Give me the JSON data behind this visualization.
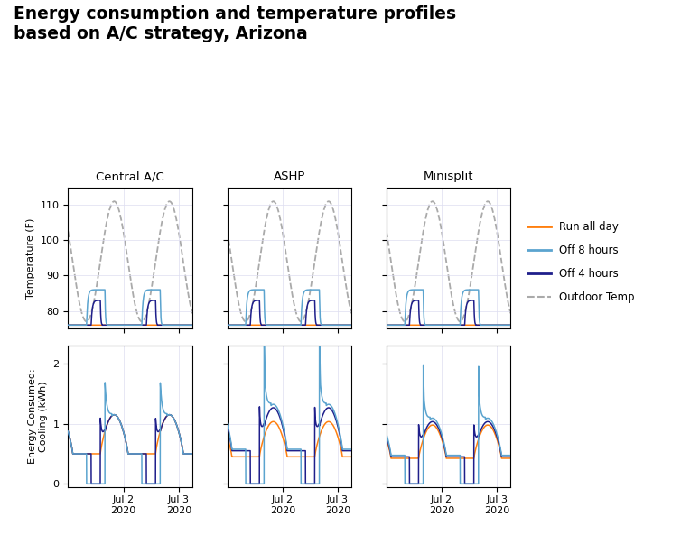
{
  "title": "Energy consumption and temperature profiles\nbased on A/C strategy, Arizona",
  "col_titles": [
    "Central A/C",
    "ASHP",
    "Minisplit"
  ],
  "legend_labels": [
    "Run all day",
    "Off 8 hours",
    "Off 4 hours",
    "Outdoor Temp"
  ],
  "color_run": "#FF7F0E",
  "color_off8": "#5BA4CF",
  "color_off4": "#1F1F8B",
  "color_outdoor": "#AAAAAA",
  "temp_ylim": [
    75,
    115
  ],
  "temp_yticks": [
    80,
    90,
    100,
    110
  ],
  "energy_ylim": [
    -0.05,
    2.3
  ],
  "energy_yticks": [
    0,
    1,
    2
  ],
  "ylabel_temp": "Temperature (F)",
  "ylabel_energy": "Energy Consumed:\nCooling (kWh)",
  "grid_color": "#DDDDF0"
}
